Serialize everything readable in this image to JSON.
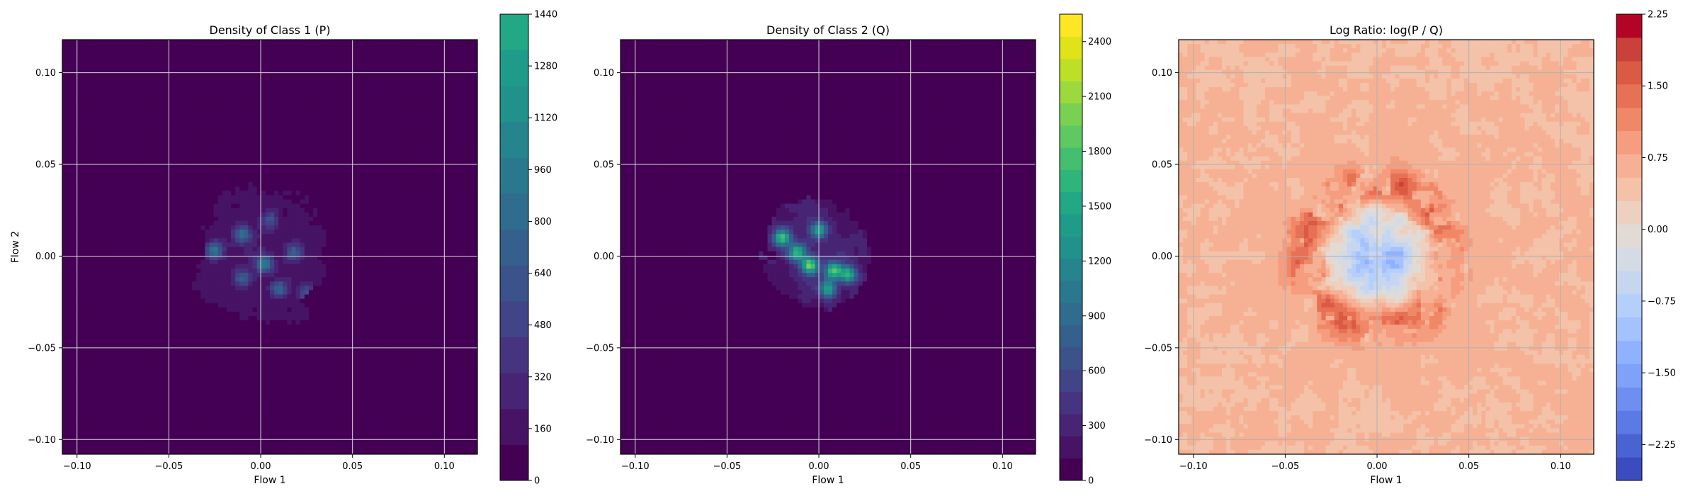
{
  "chart_data": [
    {
      "type": "heatmap",
      "title": "Density of Class 1 (P)",
      "xlabel": "Flow 1",
      "ylabel": "Flow 2",
      "xlim": [
        -0.108,
        0.118
      ],
      "ylim": [
        -0.108,
        0.118
      ],
      "xticks": [
        -0.1,
        -0.05,
        0.0,
        0.05,
        0.1
      ],
      "yticks": [
        -0.1,
        -0.05,
        0.0,
        0.05,
        0.1
      ],
      "xtick_labels": [
        "−0.10",
        "−0.05",
        "0.00",
        "0.05",
        "0.10"
      ],
      "ytick_labels": [
        "−0.10",
        "−0.05",
        "0.00",
        "0.05",
        "0.10"
      ],
      "grid": true,
      "colormap": "viridis",
      "colorbar": {
        "min": 0,
        "max": 1440,
        "ticks": [
          0,
          160,
          320,
          480,
          640,
          800,
          960,
          1120,
          1280,
          1440
        ],
        "tick_labels": [
          "0",
          "160",
          "320",
          "480",
          "640",
          "800",
          "960",
          "1120",
          "1280",
          "1440"
        ],
        "colors": [
          "#440154",
          "#471365",
          "#482475",
          "#463480",
          "#414487",
          "#3b528b",
          "#355f8d",
          "#2f6c8e",
          "#2a788e",
          "#25848e",
          "#21918c",
          "#1e9c89",
          "#22a884"
        ]
      },
      "density_blob": {
        "center": [
          0.0,
          0.0
        ],
        "spread": [
          0.035,
          0.038
        ],
        "level": 0.14,
        "hotspots": [
          {
            "x": -0.025,
            "y": 0.003,
            "value": 0.55
          },
          {
            "x": 0.002,
            "y": -0.004,
            "value": 0.6
          },
          {
            "x": -0.01,
            "y": 0.012,
            "value": 0.45
          },
          {
            "x": 0.018,
            "y": 0.002,
            "value": 0.42
          },
          {
            "x": 0.01,
            "y": -0.018,
            "value": 0.45
          },
          {
            "x": 0.025,
            "y": -0.02,
            "value": 0.38
          },
          {
            "x": -0.01,
            "y": -0.012,
            "value": 0.4
          },
          {
            "x": 0.005,
            "y": 0.02,
            "value": 0.35
          }
        ]
      }
    },
    {
      "type": "heatmap",
      "title": "Density of Class 2 (Q)",
      "xlabel": "Flow 1",
      "ylabel": "",
      "xlim": [
        -0.108,
        0.118
      ],
      "ylim": [
        -0.108,
        0.118
      ],
      "xticks": [
        -0.1,
        -0.05,
        0.0,
        0.05,
        0.1
      ],
      "yticks": [
        -0.1,
        -0.05,
        0.0,
        0.05,
        0.1
      ],
      "xtick_labels": [
        "−0.10",
        "−0.05",
        "0.00",
        "0.05",
        "0.10"
      ],
      "ytick_labels": [
        "−0.10",
        "−0.05",
        "0.00",
        "0.05",
        "0.10"
      ],
      "grid": true,
      "colormap": "viridis",
      "colorbar": {
        "min": 0,
        "max": 2550,
        "ticks": [
          0,
          300,
          600,
          900,
          1200,
          1500,
          1800,
          2100,
          2400
        ],
        "tick_labels": [
          "0",
          "300",
          "600",
          "900",
          "1200",
          "1500",
          "1800",
          "2100",
          "2400"
        ],
        "colors": [
          "#440154",
          "#471365",
          "#482475",
          "#463480",
          "#414487",
          "#3b528b",
          "#355f8d",
          "#2f6c8e",
          "#2a788e",
          "#25848e",
          "#21918c",
          "#1e9c89",
          "#22a884",
          "#2fb47c",
          "#44bf70",
          "#5ec962",
          "#7ad151",
          "#9bd93c",
          "#bddf26",
          "#dfe318",
          "#fde725"
        ]
      },
      "density_blob": {
        "center": [
          0.0,
          0.0
        ],
        "spread": [
          0.028,
          0.03
        ],
        "level": 0.14,
        "hotspots": [
          {
            "x": -0.02,
            "y": 0.01,
            "value": 0.6
          },
          {
            "x": -0.005,
            "y": -0.005,
            "value": 0.7
          },
          {
            "x": 0.008,
            "y": -0.008,
            "value": 0.6
          },
          {
            "x": 0.016,
            "y": -0.01,
            "value": 0.55
          },
          {
            "x": 0.005,
            "y": -0.018,
            "value": 0.5
          },
          {
            "x": -0.012,
            "y": 0.002,
            "value": 0.55
          },
          {
            "x": 0.0,
            "y": 0.014,
            "value": 0.45
          },
          {
            "x": 0.02,
            "y": -0.028,
            "value": 0.35
          }
        ]
      }
    },
    {
      "type": "heatmap",
      "title": "Log Ratio: log(P / Q)",
      "xlabel": "Flow 1",
      "ylabel": "",
      "xlim": [
        -0.108,
        0.118
      ],
      "ylim": [
        -0.108,
        0.118
      ],
      "xticks": [
        -0.1,
        -0.05,
        0.0,
        0.05,
        0.1
      ],
      "yticks": [
        -0.1,
        -0.05,
        0.0,
        0.05,
        0.1
      ],
      "xtick_labels": [
        "−0.10",
        "−0.05",
        "0.00",
        "0.05",
        "0.10"
      ],
      "ytick_labels": [
        "−0.10",
        "−0.05",
        "0.00",
        "0.05",
        "0.10"
      ],
      "grid": true,
      "colormap": "coolwarm",
      "colorbar": {
        "min": -2.625,
        "max": 2.25,
        "ticks": [
          -2.25,
          -1.5,
          -0.75,
          0.0,
          0.75,
          1.5,
          2.25
        ],
        "tick_labels": [
          "−2.25",
          "−1.50",
          "−0.75",
          "0.00",
          "0.75",
          "1.50",
          "2.25"
        ],
        "colors": [
          "#3b4cc0",
          "#4a63d3",
          "#5b7ae5",
          "#6c8ff1",
          "#7ea1fa",
          "#90b2fe",
          "#a3c2fe",
          "#b5cffb",
          "#c6d6f1",
          "#d5dbe5",
          "#e2dad5",
          "#edd0c0",
          "#f3c2a9",
          "#f6b194",
          "#f59d7e",
          "#f08868",
          "#e77154",
          "#da5a43",
          "#c9413a",
          "#b40426"
        ]
      },
      "background_value": 0.55,
      "blob_value": -1.2,
      "ring_value": 1.2
    }
  ]
}
